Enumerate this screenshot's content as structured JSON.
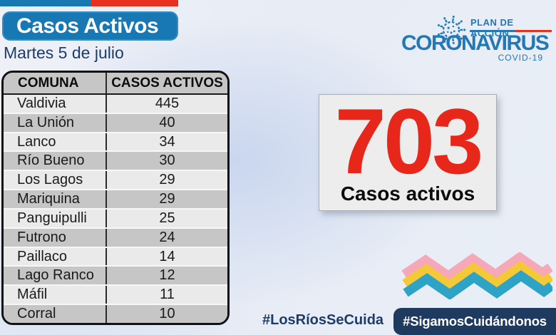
{
  "page": {
    "title": "Casos Activos",
    "date": "Martes 5 de julio"
  },
  "table": {
    "headers": [
      "COMUNA",
      "CASOS ACTIVOS"
    ],
    "rows": [
      {
        "comuna": "Valdivia",
        "casos": "445"
      },
      {
        "comuna": "La Unión",
        "casos": "40"
      },
      {
        "comuna": "Lanco",
        "casos": "34"
      },
      {
        "comuna": "Río Bueno",
        "casos": "30"
      },
      {
        "comuna": "Los Lagos",
        "casos": "29"
      },
      {
        "comuna": "Mariquina",
        "casos": "29"
      },
      {
        "comuna": "Panguipulli",
        "casos": "25"
      },
      {
        "comuna": "Futrono",
        "casos": "24"
      },
      {
        "comuna": "Paillaco",
        "casos": "14"
      },
      {
        "comuna": "Lago Ranco",
        "casos": "12"
      },
      {
        "comuna": "Máfil",
        "casos": "11"
      },
      {
        "comuna": "Corral",
        "casos": "10"
      }
    ]
  },
  "total": {
    "value": "703",
    "label": "Casos activos"
  },
  "logo": {
    "plan": "PLAN DE ACCIÓN",
    "name": "CORONAVIRUS",
    "sub": "COVID-19",
    "virus_icon": "coronavirus-icon"
  },
  "hashtags": {
    "left": "#LosRíosSeCuida",
    "right": "#SigamosCuidándonos"
  },
  "colors": {
    "banner_blue": "#1878b4",
    "flag_red": "#e8321f",
    "navy": "#1d3c66",
    "accent_red": "#e8271b",
    "logo_blue": "#2478b5",
    "hashtag_box_navy": "#1e3a5e",
    "row_light": "#eaeaea",
    "row_dark": "#c6c6c6",
    "zigzag_pink": "#f5a8b8",
    "zigzag_yellow": "#f4c937",
    "zigzag_teal": "#2ea3c6"
  },
  "chart_data": {
    "type": "table",
    "title": "Casos Activos",
    "subtitle": "Martes 5 de julio",
    "columns": [
      "COMUNA",
      "CASOS ACTIVOS"
    ],
    "rows": [
      [
        "Valdivia",
        445
      ],
      [
        "La Unión",
        40
      ],
      [
        "Lanco",
        34
      ],
      [
        "Río Bueno",
        30
      ],
      [
        "Los Lagos",
        29
      ],
      [
        "Mariquina",
        29
      ],
      [
        "Panguipulli",
        25
      ],
      [
        "Futrono",
        24
      ],
      [
        "Paillaco",
        14
      ],
      [
        "Lago Ranco",
        12
      ],
      [
        "Máfil",
        11
      ],
      [
        "Corral",
        10
      ]
    ],
    "total": {
      "label": "Casos activos",
      "value": 703
    }
  }
}
